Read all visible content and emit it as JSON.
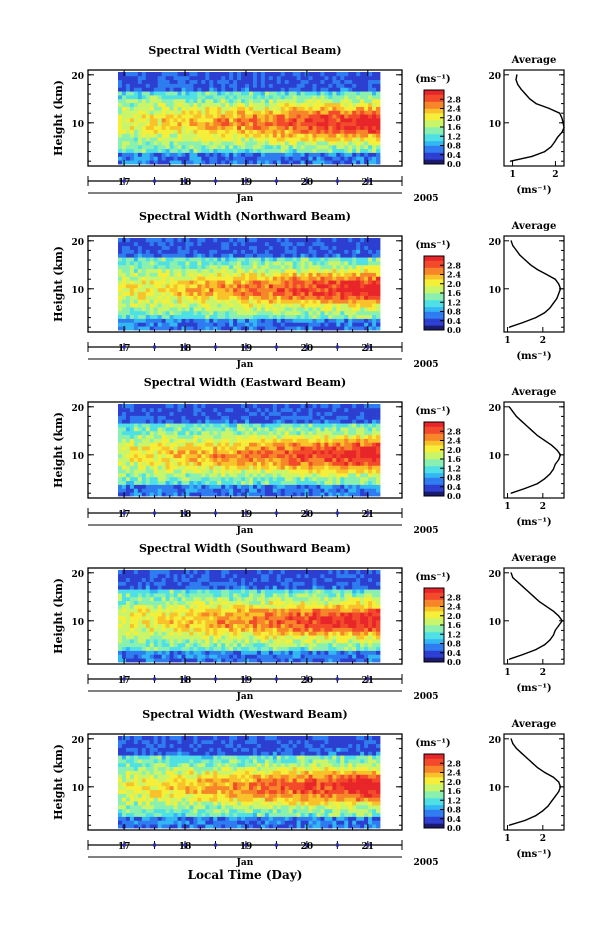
{
  "figure": {
    "xaxis_title": "Local Time (Day)",
    "month_label": "Jan",
    "year_label": "2005",
    "colorbar_unit": "(ms⁻¹)",
    "avg_title": "Average",
    "avg_xlabel": "(ms⁻¹)",
    "ylabel": "Height (km)",
    "colormap": [
      "#1a1a6e",
      "#2c3fd1",
      "#2f7cf0",
      "#33b7f4",
      "#4fe0e6",
      "#8af0b0",
      "#c9f56a",
      "#f5ef3a",
      "#f9c12a",
      "#f7862a",
      "#f24a2a",
      "#e8262a"
    ]
  },
  "chart_data": [
    {
      "type": "heatmap",
      "title": "Spectral Width (Vertical Beam)",
      "x_ticks": [
        "17",
        "18",
        "19",
        "20",
        "21"
      ],
      "y_ticks": [
        "10",
        "20"
      ],
      "colorbar_ticks": [
        "0.0",
        "0.4",
        "0.8",
        "1.2",
        "1.6",
        "2.0",
        "2.4",
        "2.8"
      ],
      "colorbar_range": [
        0,
        3.2
      ],
      "average_profile": {
        "x_ticks": [
          "1",
          "2"
        ],
        "xlim": [
          0.8,
          2.2
        ],
        "ylim": [
          1,
          21
        ],
        "height_km": [
          2,
          3,
          4,
          5,
          6,
          7,
          8,
          9,
          10,
          11,
          12,
          13,
          14,
          15,
          16,
          17,
          18,
          19,
          20
        ],
        "width_ms": [
          0.95,
          1.45,
          1.75,
          1.9,
          1.98,
          2.05,
          2.15,
          2.2,
          2.18,
          2.15,
          2.1,
          1.85,
          1.55,
          1.4,
          1.3,
          1.2,
          1.12,
          1.08,
          1.1
        ]
      }
    },
    {
      "type": "heatmap",
      "title": "Spectral Width (Northward Beam)",
      "x_ticks": [
        "17",
        "18",
        "19",
        "20",
        "21"
      ],
      "y_ticks": [
        "10",
        "20"
      ],
      "colorbar_ticks": [
        "0.0",
        "0.4",
        "0.8",
        "1.2",
        "1.6",
        "2.0",
        "2.4",
        "2.8"
      ],
      "colorbar_range": [
        0,
        3.2
      ],
      "average_profile": {
        "x_ticks": [
          "1",
          "2"
        ],
        "xlim": [
          0.9,
          2.6
        ],
        "ylim": [
          1,
          21
        ],
        "height_km": [
          2,
          3,
          4,
          5,
          6,
          7,
          8,
          9,
          10,
          11,
          12,
          13,
          14,
          15,
          16,
          17,
          18,
          19,
          20
        ],
        "width_ms": [
          1.05,
          1.45,
          1.8,
          2.05,
          2.2,
          2.3,
          2.4,
          2.45,
          2.5,
          2.45,
          2.35,
          2.1,
          1.85,
          1.65,
          1.5,
          1.35,
          1.25,
          1.15,
          1.1
        ]
      }
    },
    {
      "type": "heatmap",
      "title": "Spectral Width (Eastward Beam)",
      "x_ticks": [
        "17",
        "18",
        "19",
        "20",
        "21"
      ],
      "y_ticks": [
        "10",
        "20"
      ],
      "colorbar_ticks": [
        "0.0",
        "0.4",
        "0.8",
        "1.2",
        "1.6",
        "2.0",
        "2.4",
        "2.8"
      ],
      "colorbar_range": [
        0,
        3.2
      ],
      "average_profile": {
        "x_ticks": [
          "1",
          "2"
        ],
        "xlim": [
          0.9,
          2.6
        ],
        "ylim": [
          1,
          21
        ],
        "height_km": [
          2,
          3,
          4,
          5,
          6,
          7,
          8,
          9,
          10,
          11,
          12,
          13,
          14,
          15,
          16,
          17,
          18,
          19,
          20
        ],
        "width_ms": [
          1.1,
          1.5,
          1.85,
          2.05,
          2.2,
          2.3,
          2.35,
          2.45,
          2.5,
          2.4,
          2.25,
          2.05,
          1.85,
          1.7,
          1.55,
          1.4,
          1.25,
          1.15,
          1.05
        ]
      }
    },
    {
      "type": "heatmap",
      "title": "Spectral Width (Southward Beam)",
      "x_ticks": [
        "17",
        "18",
        "19",
        "20",
        "21"
      ],
      "y_ticks": [
        "10",
        "20"
      ],
      "colorbar_ticks": [
        "0.0",
        "0.4",
        "0.8",
        "1.2",
        "1.6",
        "2.0",
        "2.4",
        "2.8"
      ],
      "colorbar_range": [
        0,
        3.2
      ],
      "average_profile": {
        "x_ticks": [
          "1",
          "2"
        ],
        "xlim": [
          0.9,
          2.6
        ],
        "ylim": [
          1,
          21
        ],
        "height_km": [
          2,
          3,
          4,
          5,
          6,
          7,
          8,
          9,
          10,
          11,
          12,
          13,
          14,
          15,
          16,
          17,
          18,
          19,
          20
        ],
        "width_ms": [
          1.05,
          1.45,
          1.8,
          2.05,
          2.2,
          2.3,
          2.35,
          2.45,
          2.55,
          2.45,
          2.3,
          2.1,
          1.9,
          1.75,
          1.6,
          1.45,
          1.3,
          1.15,
          1.1
        ]
      }
    },
    {
      "type": "heatmap",
      "title": "Spectral Width (Westward Beam)",
      "x_ticks": [
        "17",
        "18",
        "19",
        "20",
        "21"
      ],
      "y_ticks": [
        "10",
        "20"
      ],
      "colorbar_ticks": [
        "0.0",
        "0.4",
        "0.8",
        "1.2",
        "1.6",
        "2.0",
        "2.4",
        "2.8"
      ],
      "colorbar_range": [
        0,
        3.2
      ],
      "average_profile": {
        "x_ticks": [
          "1",
          "2"
        ],
        "xlim": [
          0.9,
          2.6
        ],
        "ylim": [
          1,
          21
        ],
        "height_km": [
          2,
          3,
          4,
          5,
          6,
          7,
          8,
          9,
          10,
          11,
          12,
          13,
          14,
          15,
          16,
          17,
          18,
          19,
          20
        ],
        "width_ms": [
          1.05,
          1.5,
          1.8,
          2.0,
          2.15,
          2.25,
          2.35,
          2.45,
          2.5,
          2.45,
          2.3,
          2.05,
          1.85,
          1.7,
          1.55,
          1.4,
          1.25,
          1.15,
          1.1
        ]
      }
    }
  ]
}
